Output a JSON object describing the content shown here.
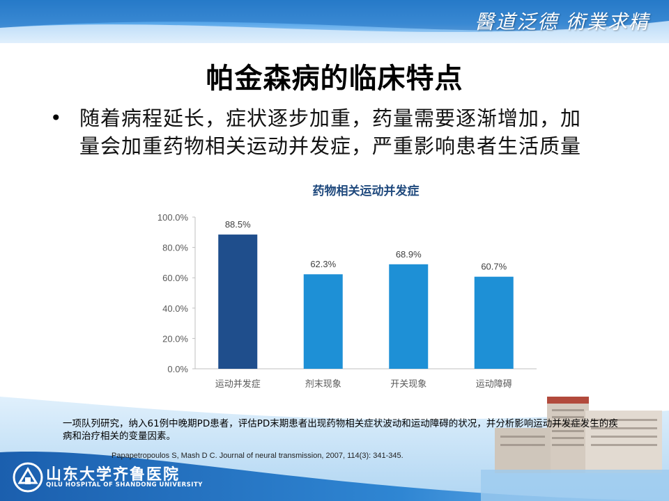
{
  "header": {
    "motto": "醫道泛德 術業求精"
  },
  "title": "帕金森病的临床特点",
  "bullet": {
    "line1": "随着病程延长，症状逐步加重，药量需要逐渐增加，加",
    "line2": "量会加重药物相关运动并发症，严重影响患者生活质量"
  },
  "chart_data": {
    "type": "bar",
    "title": "药物相关运动并发症",
    "categories": [
      "运动并发症",
      "剂末现象",
      "开关现象",
      "运动障碍"
    ],
    "values": [
      88.5,
      62.3,
      68.9,
      60.7
    ],
    "value_labels": [
      "88.5%",
      "62.3%",
      "68.9%",
      "60.7%"
    ],
    "ylim": [
      0,
      100
    ],
    "yticks": [
      "0.0%",
      "20.0%",
      "40.0%",
      "60.0%",
      "80.0%",
      "100.0%"
    ],
    "grid": false,
    "colors": [
      "#1f4e8c",
      "#1e90d6",
      "#1e90d6",
      "#1e90d6"
    ],
    "title_color": "#1f497d"
  },
  "note": "一项队列研究，纳入61例中晚期PD患者，评估PD末期患者出现药物相关症状波动和运动障碍的状况，并分析影响运动并发症发生的疾病和治疗相关的变量因素。",
  "citation": "Papapetropoulos S, Mash D C. Journal of neural transmission, 2007, 114(3): 341-345.",
  "footer": {
    "hospital_name": "山东大学齐鲁医院",
    "hospital_en": "QILU HOSPITAL OF SHANDONG UNIVERSITY"
  },
  "colors": {
    "brand_blue": "#2f86d3"
  }
}
